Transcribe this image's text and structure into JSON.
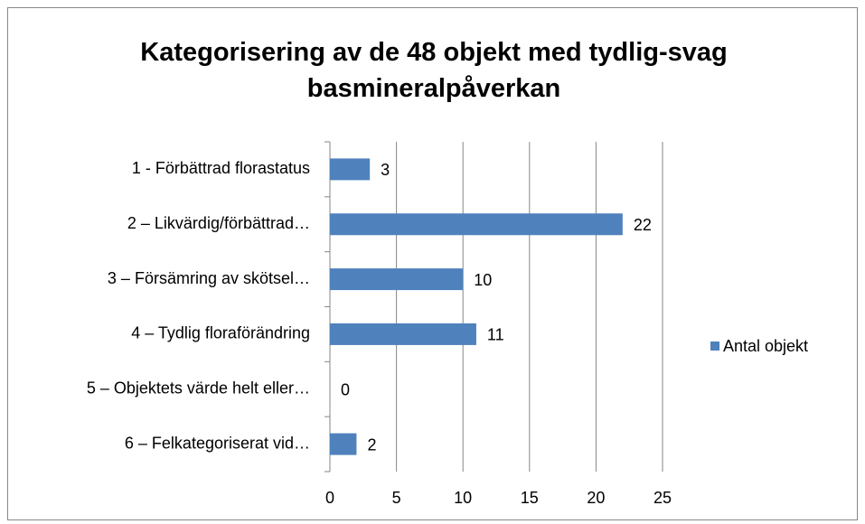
{
  "chart_data": {
    "type": "bar",
    "orientation": "horizontal",
    "title": "Kategorisering av de 48 objekt med tydlig-svag basmineralpåverkan",
    "categories": [
      "1 - Förbättrad florastatus",
      "2 – Likvärdig/förbättrad…",
      "3 – Försämring av skötsel…",
      "4 – Tydlig floraförändring",
      "5 – Objektets värde helt eller…",
      "6 – Felkategoriserat vid…"
    ],
    "series": [
      {
        "name": "Antal objekt",
        "color": "#4f81bd",
        "values": [
          3,
          22,
          10,
          11,
          0,
          2
        ]
      }
    ],
    "xlim": [
      0,
      25
    ],
    "xticks": [
      0,
      5,
      10,
      15,
      20,
      25
    ],
    "grid": true,
    "legend": "right",
    "data_labels": true
  }
}
